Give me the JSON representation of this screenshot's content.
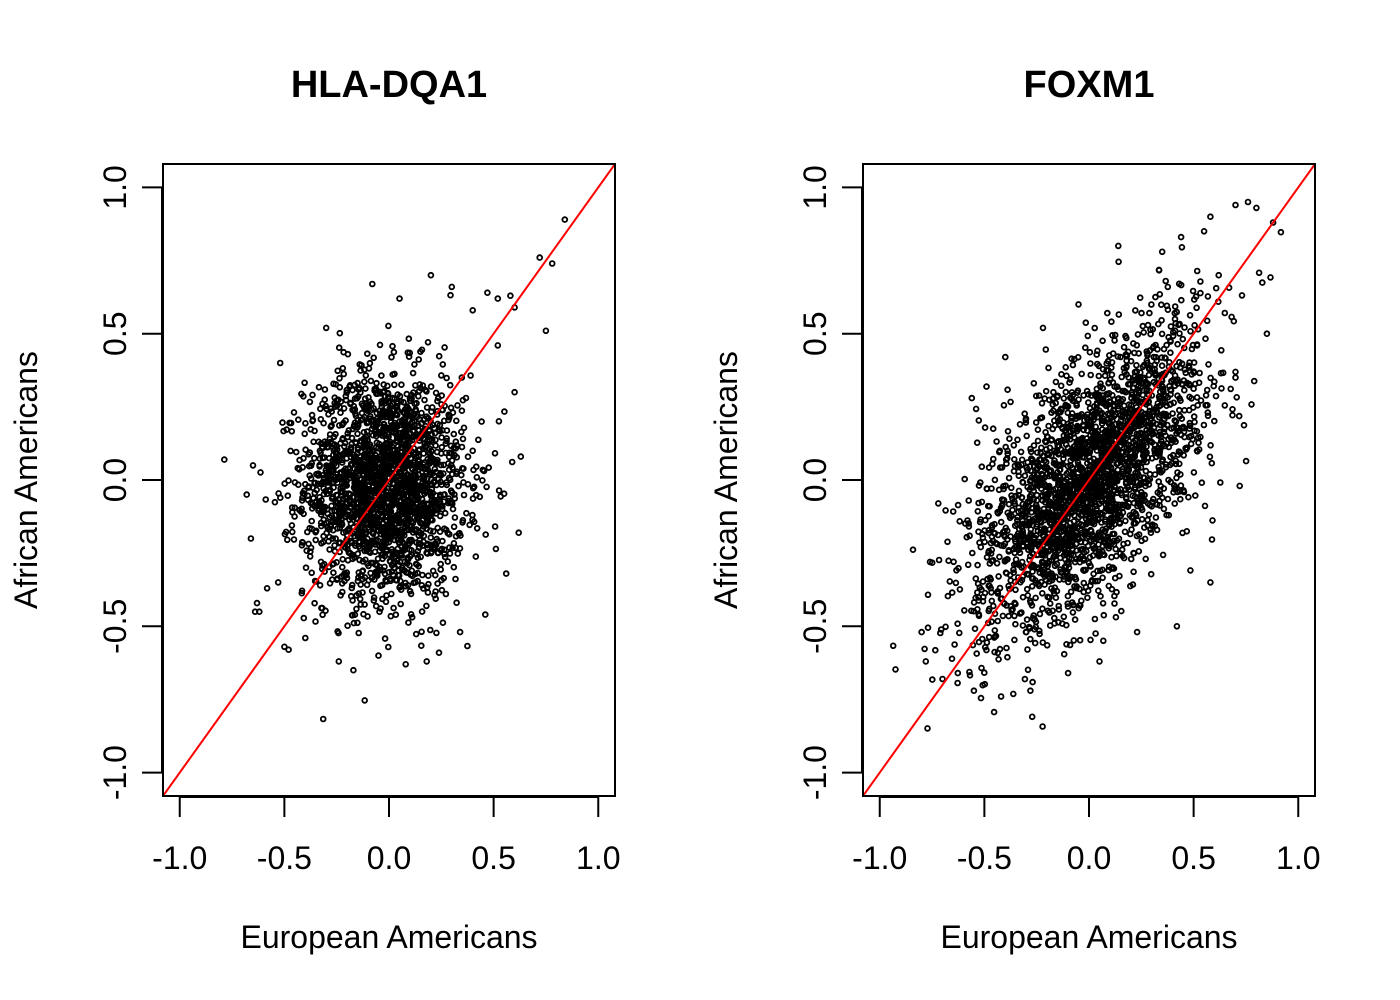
{
  "chart_data": [
    {
      "type": "scatter",
      "title": "HLA-DQA1",
      "xlabel": "European Americans",
      "ylabel": "African Americans",
      "xlim": [
        -1.08,
        1.08
      ],
      "ylim": [
        -1.08,
        1.08
      ],
      "xticks": [
        "-1.0",
        "-0.5",
        "0.0",
        "0.5",
        "1.0"
      ],
      "yticks": [
        "-1.0",
        "-0.5",
        "0.0",
        "0.5",
        "1.0"
      ],
      "tick_values": [
        -1.0,
        -0.5,
        0.0,
        0.5,
        1.0
      ],
      "grid": false,
      "legend": "none",
      "reference_line": {
        "slope": 1,
        "intercept": 0,
        "color": "#ff0000"
      },
      "point_color": "#000000",
      "distribution": {
        "center_x": -0.02,
        "center_y": -0.02,
        "sd_x": 0.19,
        "sd_y": 0.19,
        "correlation": 0.0,
        "n_points": 2200
      },
      "points": [
        [
          0.84,
          0.89
        ],
        [
          0.72,
          0.76
        ],
        [
          0.78,
          0.74
        ],
        [
          0.75,
          0.51
        ],
        [
          0.58,
          0.63
        ],
        [
          0.6,
          0.59
        ],
        [
          0.52,
          0.62
        ],
        [
          0.47,
          0.64
        ],
        [
          0.3,
          0.66
        ],
        [
          0.2,
          0.7
        ],
        [
          -0.08,
          0.67
        ],
        [
          -0.3,
          0.52
        ],
        [
          -0.52,
          0.4
        ],
        [
          -0.65,
          0.05
        ],
        [
          -0.68,
          -0.05
        ],
        [
          -0.66,
          -0.2
        ],
        [
          -0.64,
          -0.45
        ],
        [
          -0.62,
          -0.45
        ],
        [
          -0.5,
          -0.57
        ],
        [
          -0.48,
          -0.58
        ],
        [
          -0.4,
          -0.54
        ],
        [
          -0.24,
          -0.62
        ],
        [
          -0.17,
          -0.65
        ],
        [
          -0.05,
          -0.6
        ],
        [
          0.08,
          -0.63
        ],
        [
          0.18,
          -0.62
        ],
        [
          0.34,
          -0.52
        ],
        [
          0.46,
          -0.46
        ],
        [
          0.56,
          -0.32
        ],
        [
          0.62,
          -0.18
        ],
        [
          0.63,
          0.08
        ],
        [
          0.6,
          0.3
        ],
        [
          0.52,
          0.46
        ],
        [
          0.4,
          0.58
        ],
        [
          0.05,
          0.62
        ]
      ]
    },
    {
      "type": "scatter",
      "title": "FOXM1",
      "xlabel": "European Americans",
      "ylabel": "African Americans",
      "xlim": [
        -1.08,
        1.08
      ],
      "ylim": [
        -1.08,
        1.08
      ],
      "xticks": [
        "-1.0",
        "-0.5",
        "0.0",
        "0.5",
        "1.0"
      ],
      "yticks": [
        "-1.0",
        "-0.5",
        "0.0",
        "0.5",
        "1.0"
      ],
      "tick_values": [
        -1.0,
        -0.5,
        0.0,
        0.5,
        1.0
      ],
      "grid": false,
      "legend": "none",
      "reference_line": {
        "slope": 1,
        "intercept": 0,
        "color": "#ff0000"
      },
      "point_color": "#000000",
      "distribution": {
        "center_x": 0.0,
        "center_y": 0.0,
        "sd_x": 0.27,
        "sd_y": 0.25,
        "correlation": 0.62,
        "n_points": 2600
      },
      "points": [
        [
          0.8,
          0.93
        ],
        [
          0.76,
          0.95
        ],
        [
          0.7,
          0.94
        ],
        [
          0.88,
          0.88
        ],
        [
          0.85,
          0.5
        ],
        [
          0.58,
          0.9
        ],
        [
          0.55,
          0.85
        ],
        [
          0.44,
          0.83
        ],
        [
          0.35,
          0.78
        ],
        [
          0.14,
          0.8
        ],
        [
          -0.05,
          0.6
        ],
        [
          -0.22,
          0.52
        ],
        [
          -0.4,
          0.42
        ],
        [
          -0.56,
          0.28
        ],
        [
          -0.72,
          -0.08
        ],
        [
          -0.76,
          -0.28
        ],
        [
          -0.8,
          -0.52
        ],
        [
          -0.78,
          -0.62
        ],
        [
          -0.7,
          -0.68
        ],
        [
          -0.55,
          -0.72
        ],
        [
          -0.42,
          -0.74
        ],
        [
          -0.28,
          -0.72
        ],
        [
          -0.1,
          -0.66
        ],
        [
          0.05,
          -0.62
        ],
        [
          0.23,
          -0.52
        ],
        [
          0.42,
          -0.5
        ],
        [
          0.58,
          -0.35
        ],
        [
          0.72,
          -0.02
        ],
        [
          0.7,
          0.35
        ],
        [
          0.62,
          0.7
        ]
      ]
    }
  ]
}
